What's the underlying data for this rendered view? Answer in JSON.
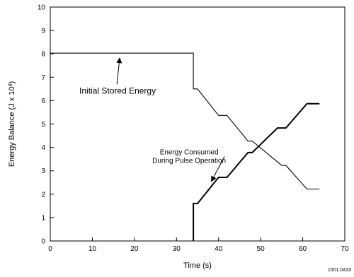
{
  "chart_data": {
    "type": "line",
    "title": "",
    "xlabel": "Time (s)",
    "ylabel_main": "Energy Balance (J x 10",
    "ylabel_exp": "8",
    "ylabel_close": ")",
    "xlim": [
      0,
      70
    ],
    "ylim": [
      0,
      10
    ],
    "xticks": [
      0,
      10,
      20,
      30,
      40,
      50,
      60,
      70
    ],
    "yticks": [
      0,
      1,
      2,
      3,
      4,
      5,
      6,
      7,
      8,
      9,
      10
    ],
    "grid": false,
    "series": [
      {
        "x": [
          0,
          34,
          34,
          35,
          40,
          42,
          47,
          48,
          55,
          56,
          61,
          64
        ],
        "y": [
          8.03,
          8.03,
          6.5,
          6.5,
          5.37,
          5.37,
          4.27,
          4.27,
          3.23,
          3.23,
          2.22,
          2.22
        ],
        "color": "#000000"
      },
      {
        "x": [
          34,
          34,
          35,
          40,
          42,
          47,
          48,
          54,
          56,
          61,
          64
        ],
        "y": [
          0,
          1.6,
          1.6,
          2.72,
          2.72,
          3.78,
          3.78,
          4.83,
          4.83,
          5.87,
          5.87
        ],
        "color": "#000000"
      }
    ],
    "annotations": [
      {
        "text": "Initial Stored Energy",
        "x": 16,
        "y": 6.3,
        "arrow_to": [
          16.5,
          7.88
        ]
      },
      {
        "line1": "Energy Consumed",
        "line2": "During Pulse Operation",
        "x": 33,
        "y": 3.7,
        "arrow_to": [
          38.3,
          2.55
        ]
      }
    ],
    "figure_ref": "1501.0433"
  }
}
